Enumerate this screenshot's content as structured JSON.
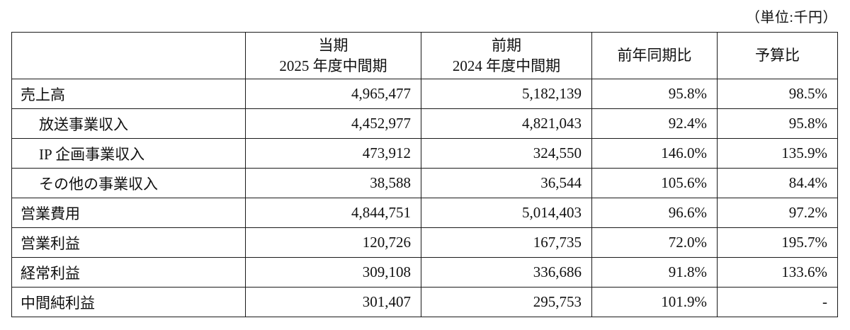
{
  "unit_label": "（単位:千円）",
  "table": {
    "header": {
      "label_col": "",
      "current_line1": "当期",
      "current_line2": "2025 年度中間期",
      "previous_line1": "前期",
      "previous_line2": "2024 年度中間期",
      "yoy": "前年同期比",
      "budget": "予算比"
    },
    "rows": [
      {
        "label": "売上高",
        "indent": false,
        "current": "4,965,477",
        "previous": "5,182,139",
        "yoy": "95.8%",
        "budget": "98.5%"
      },
      {
        "label": "放送事業収入",
        "indent": true,
        "current": "4,452,977",
        "previous": "4,821,043",
        "yoy": "92.4%",
        "budget": "95.8%"
      },
      {
        "label": "IP 企画事業収入",
        "indent": true,
        "current": "473,912",
        "previous": "324,550",
        "yoy": "146.0%",
        "budget": "135.9%"
      },
      {
        "label": "その他の事業収入",
        "indent": true,
        "current": "38,588",
        "previous": "36,544",
        "yoy": "105.6%",
        "budget": "84.4%"
      },
      {
        "label": "営業費用",
        "indent": false,
        "current": "4,844,751",
        "previous": "5,014,403",
        "yoy": "96.6%",
        "budget": "97.2%"
      },
      {
        "label": "営業利益",
        "indent": false,
        "current": "120,726",
        "previous": "167,735",
        "yoy": "72.0%",
        "budget": "195.7%"
      },
      {
        "label": "経常利益",
        "indent": false,
        "current": "309,108",
        "previous": "336,686",
        "yoy": "91.8%",
        "budget": "133.6%"
      },
      {
        "label": "中間純利益",
        "indent": false,
        "current": "301,407",
        "previous": "295,753",
        "yoy": "101.9%",
        "budget": "-"
      }
    ]
  }
}
